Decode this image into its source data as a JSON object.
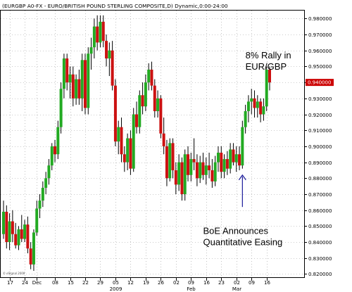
{
  "header": {
    "symbol": "(EURGBP A0-FX - EURO/BRITISH POUND STERLING COMPOSITE,D) Dynamic,0:00-24:00"
  },
  "copyright": "© eSignal 2009",
  "chart_data": {
    "type": "candlestick",
    "title": "",
    "xlabel": "",
    "ylabel": "",
    "ylim": [
      0.818,
      0.985
    ],
    "y_ticks": [
      0.82,
      0.83,
      0.84,
      0.85,
      0.86,
      0.87,
      0.88,
      0.89,
      0.9,
      0.91,
      0.92,
      0.93,
      0.94,
      0.95,
      0.96,
      0.97,
      0.98
    ],
    "y_tick_labels": [
      "0.820000",
      "0.830000",
      "0.840000",
      "0.850000",
      "0.860000",
      "0.870000",
      "0.880000",
      "0.890000",
      "0.900000",
      "0.910000",
      "0.920000",
      "0.930000",
      "0.940000",
      "0.950000",
      "0.960000",
      "0.970000",
      "0.980000"
    ],
    "x_ticks": [
      {
        "label": "17",
        "bar": 2
      },
      {
        "label": "24",
        "bar": 7
      },
      {
        "label": "Dec",
        "bar": 11
      },
      {
        "label": "08",
        "bar": 17
      },
      {
        "label": "15",
        "bar": 22
      },
      {
        "label": "22",
        "bar": 27
      },
      {
        "label": "29",
        "bar": 32
      },
      {
        "label": "05",
        "bar": 37
      },
      {
        "label": "2009",
        "bar": 37
      },
      {
        "label": "12",
        "bar": 42
      },
      {
        "label": "19",
        "bar": 47
      },
      {
        "label": "26",
        "bar": 52
      },
      {
        "label": "02",
        "bar": 57
      },
      {
        "label": "09",
        "bar": 62
      },
      {
        "label": "Feb",
        "bar": 62
      },
      {
        "label": "16",
        "bar": 67
      },
      {
        "label": "23",
        "bar": 72
      },
      {
        "label": "02",
        "bar": 77
      },
      {
        "label": "Mar",
        "bar": 77
      },
      {
        "label": "09",
        "bar": 82
      },
      {
        "label": "16",
        "bar": 87
      }
    ],
    "last_price": 0.94,
    "last_price_label": "0.940000",
    "grid": true,
    "colors": {
      "up": "#22aa22",
      "down": "#cc1111",
      "wick": "#000000",
      "grid": "#999999",
      "price_tag": "#cc0000",
      "arrow": "#1a1a9a"
    },
    "annotations": [
      {
        "text_lines": [
          "8% Rally in",
          "EUR/GBP"
        ],
        "anchor_bar": 80,
        "y": 0.955
      },
      {
        "text_lines": [
          "BoE Announces",
          "Quantitative Easing"
        ],
        "anchor_bar": 66,
        "y": 0.845
      },
      {
        "type": "arrow",
        "bar": 79,
        "from_y": 0.862,
        "to_y": 0.882
      }
    ],
    "candles": [
      {
        "o": 0.845,
        "h": 0.866,
        "l": 0.842,
        "c": 0.859
      },
      {
        "o": 0.859,
        "h": 0.863,
        "l": 0.836,
        "c": 0.84
      },
      {
        "o": 0.84,
        "h": 0.858,
        "l": 0.835,
        "c": 0.853
      },
      {
        "o": 0.853,
        "h": 0.86,
        "l": 0.84,
        "c": 0.845
      },
      {
        "o": 0.845,
        "h": 0.852,
        "l": 0.836,
        "c": 0.838
      },
      {
        "o": 0.838,
        "h": 0.85,
        "l": 0.835,
        "c": 0.848
      },
      {
        "o": 0.848,
        "h": 0.857,
        "l": 0.84,
        "c": 0.842
      },
      {
        "o": 0.842,
        "h": 0.854,
        "l": 0.84,
        "c": 0.851
      },
      {
        "o": 0.851,
        "h": 0.856,
        "l": 0.833,
        "c": 0.836
      },
      {
        "o": 0.836,
        "h": 0.84,
        "l": 0.823,
        "c": 0.826
      },
      {
        "o": 0.826,
        "h": 0.848,
        "l": 0.822,
        "c": 0.846
      },
      {
        "o": 0.846,
        "h": 0.866,
        "l": 0.844,
        "c": 0.861
      },
      {
        "o": 0.861,
        "h": 0.87,
        "l": 0.855,
        "c": 0.866
      },
      {
        "o": 0.866,
        "h": 0.878,
        "l": 0.862,
        "c": 0.874
      },
      {
        "o": 0.874,
        "h": 0.884,
        "l": 0.87,
        "c": 0.88
      },
      {
        "o": 0.88,
        "h": 0.892,
        "l": 0.876,
        "c": 0.888
      },
      {
        "o": 0.888,
        "h": 0.902,
        "l": 0.885,
        "c": 0.9
      },
      {
        "o": 0.9,
        "h": 0.904,
        "l": 0.89,
        "c": 0.895
      },
      {
        "o": 0.895,
        "h": 0.916,
        "l": 0.892,
        "c": 0.912
      },
      {
        "o": 0.912,
        "h": 0.94,
        "l": 0.908,
        "c": 0.936
      },
      {
        "o": 0.936,
        "h": 0.958,
        "l": 0.93,
        "c": 0.955
      },
      {
        "o": 0.955,
        "h": 0.958,
        "l": 0.935,
        "c": 0.94
      },
      {
        "o": 0.94,
        "h": 0.95,
        "l": 0.93,
        "c": 0.945
      },
      {
        "o": 0.945,
        "h": 0.95,
        "l": 0.925,
        "c": 0.93
      },
      {
        "o": 0.93,
        "h": 0.945,
        "l": 0.926,
        "c": 0.942
      },
      {
        "o": 0.942,
        "h": 0.948,
        "l": 0.926,
        "c": 0.93
      },
      {
        "o": 0.93,
        "h": 0.958,
        "l": 0.922,
        "c": 0.954
      },
      {
        "o": 0.954,
        "h": 0.958,
        "l": 0.92,
        "c": 0.924
      },
      {
        "o": 0.924,
        "h": 0.962,
        "l": 0.92,
        "c": 0.958
      },
      {
        "o": 0.958,
        "h": 0.968,
        "l": 0.948,
        "c": 0.962
      },
      {
        "o": 0.962,
        "h": 0.98,
        "l": 0.955,
        "c": 0.975
      },
      {
        "o": 0.975,
        "h": 0.982,
        "l": 0.96,
        "c": 0.965
      },
      {
        "o": 0.965,
        "h": 0.982,
        "l": 0.962,
        "c": 0.978
      },
      {
        "o": 0.978,
        "h": 0.982,
        "l": 0.962,
        "c": 0.966
      },
      {
        "o": 0.966,
        "h": 0.97,
        "l": 0.95,
        "c": 0.955
      },
      {
        "o": 0.955,
        "h": 0.965,
        "l": 0.944,
        "c": 0.96
      },
      {
        "o": 0.96,
        "h": 0.966,
        "l": 0.935,
        "c": 0.938
      },
      {
        "o": 0.938,
        "h": 0.942,
        "l": 0.9,
        "c": 0.903
      },
      {
        "o": 0.903,
        "h": 0.916,
        "l": 0.895,
        "c": 0.912
      },
      {
        "o": 0.912,
        "h": 0.918,
        "l": 0.89,
        "c": 0.895
      },
      {
        "o": 0.895,
        "h": 0.9,
        "l": 0.884,
        "c": 0.89
      },
      {
        "o": 0.89,
        "h": 0.908,
        "l": 0.885,
        "c": 0.905
      },
      {
        "o": 0.905,
        "h": 0.91,
        "l": 0.882,
        "c": 0.886
      },
      {
        "o": 0.886,
        "h": 0.924,
        "l": 0.884,
        "c": 0.92
      },
      {
        "o": 0.92,
        "h": 0.928,
        "l": 0.908,
        "c": 0.912
      },
      {
        "o": 0.912,
        "h": 0.935,
        "l": 0.908,
        "c": 0.932
      },
      {
        "o": 0.932,
        "h": 0.94,
        "l": 0.92,
        "c": 0.925
      },
      {
        "o": 0.925,
        "h": 0.945,
        "l": 0.922,
        "c": 0.94
      },
      {
        "o": 0.94,
        "h": 0.952,
        "l": 0.935,
        "c": 0.948
      },
      {
        "o": 0.948,
        "h": 0.953,
        "l": 0.935,
        "c": 0.938
      },
      {
        "o": 0.938,
        "h": 0.942,
        "l": 0.918,
        "c": 0.922
      },
      {
        "o": 0.922,
        "h": 0.935,
        "l": 0.918,
        "c": 0.93
      },
      {
        "o": 0.93,
        "h": 0.932,
        "l": 0.905,
        "c": 0.908
      },
      {
        "o": 0.908,
        "h": 0.918,
        "l": 0.895,
        "c": 0.9
      },
      {
        "o": 0.9,
        "h": 0.904,
        "l": 0.875,
        "c": 0.88
      },
      {
        "o": 0.88,
        "h": 0.905,
        "l": 0.878,
        "c": 0.902
      },
      {
        "o": 0.902,
        "h": 0.905,
        "l": 0.88,
        "c": 0.885
      },
      {
        "o": 0.885,
        "h": 0.89,
        "l": 0.87,
        "c": 0.876
      },
      {
        "o": 0.876,
        "h": 0.895,
        "l": 0.872,
        "c": 0.89
      },
      {
        "o": 0.89,
        "h": 0.893,
        "l": 0.866,
        "c": 0.87
      },
      {
        "o": 0.87,
        "h": 0.898,
        "l": 0.866,
        "c": 0.895
      },
      {
        "o": 0.895,
        "h": 0.9,
        "l": 0.878,
        "c": 0.882
      },
      {
        "o": 0.882,
        "h": 0.896,
        "l": 0.878,
        "c": 0.892
      },
      {
        "o": 0.892,
        "h": 0.905,
        "l": 0.885,
        "c": 0.89
      },
      {
        "o": 0.89,
        "h": 0.895,
        "l": 0.875,
        "c": 0.88
      },
      {
        "o": 0.88,
        "h": 0.894,
        "l": 0.877,
        "c": 0.89
      },
      {
        "o": 0.89,
        "h": 0.896,
        "l": 0.879,
        "c": 0.882
      },
      {
        "o": 0.882,
        "h": 0.893,
        "l": 0.876,
        "c": 0.888
      },
      {
        "o": 0.888,
        "h": 0.896,
        "l": 0.88,
        "c": 0.885
      },
      {
        "o": 0.885,
        "h": 0.892,
        "l": 0.874,
        "c": 0.878
      },
      {
        "o": 0.878,
        "h": 0.894,
        "l": 0.875,
        "c": 0.89
      },
      {
        "o": 0.89,
        "h": 0.9,
        "l": 0.884,
        "c": 0.896
      },
      {
        "o": 0.896,
        "h": 0.9,
        "l": 0.88,
        "c": 0.884
      },
      {
        "o": 0.884,
        "h": 0.895,
        "l": 0.88,
        "c": 0.892
      },
      {
        "o": 0.892,
        "h": 0.897,
        "l": 0.882,
        "c": 0.886
      },
      {
        "o": 0.886,
        "h": 0.902,
        "l": 0.883,
        "c": 0.898
      },
      {
        "o": 0.898,
        "h": 0.902,
        "l": 0.888,
        "c": 0.89
      },
      {
        "o": 0.89,
        "h": 0.9,
        "l": 0.884,
        "c": 0.895
      },
      {
        "o": 0.895,
        "h": 0.9,
        "l": 0.885,
        "c": 0.888
      },
      {
        "o": 0.888,
        "h": 0.916,
        "l": 0.886,
        "c": 0.912
      },
      {
        "o": 0.912,
        "h": 0.926,
        "l": 0.908,
        "c": 0.922
      },
      {
        "o": 0.922,
        "h": 0.932,
        "l": 0.915,
        "c": 0.928
      },
      {
        "o": 0.928,
        "h": 0.936,
        "l": 0.92,
        "c": 0.93
      },
      {
        "o": 0.93,
        "h": 0.935,
        "l": 0.918,
        "c": 0.924
      },
      {
        "o": 0.924,
        "h": 0.932,
        "l": 0.918,
        "c": 0.928
      },
      {
        "o": 0.928,
        "h": 0.93,
        "l": 0.915,
        "c": 0.92
      },
      {
        "o": 0.92,
        "h": 0.93,
        "l": 0.916,
        "c": 0.925
      },
      {
        "o": 0.925,
        "h": 0.95,
        "l": 0.922,
        "c": 0.948
      },
      {
        "o": 0.948,
        "h": 0.95,
        "l": 0.935,
        "c": 0.94
      }
    ]
  }
}
